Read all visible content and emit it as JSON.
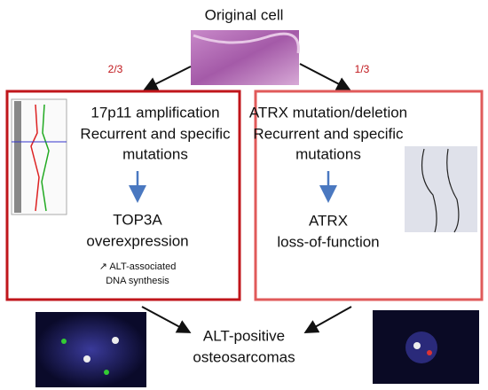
{
  "title": "Original cell",
  "branches": [
    {
      "fraction": "2/3",
      "lines": [
        "17p11 amplification",
        "Recurrent and specific",
        "mutations"
      ],
      "result": [
        "TOP3A",
        "overexpression"
      ],
      "note": [
        "↗ ALT-associated",
        "DNA synthesis"
      ]
    },
    {
      "fraction": "1/3",
      "lines": [
        "ATRX mutation/deletion",
        "Recurrent and specific",
        "mutations"
      ],
      "result": [
        "ATRX",
        "loss-of-function"
      ]
    }
  ],
  "outcome": [
    "ALT-positive",
    "osteosarcomas"
  ]
}
